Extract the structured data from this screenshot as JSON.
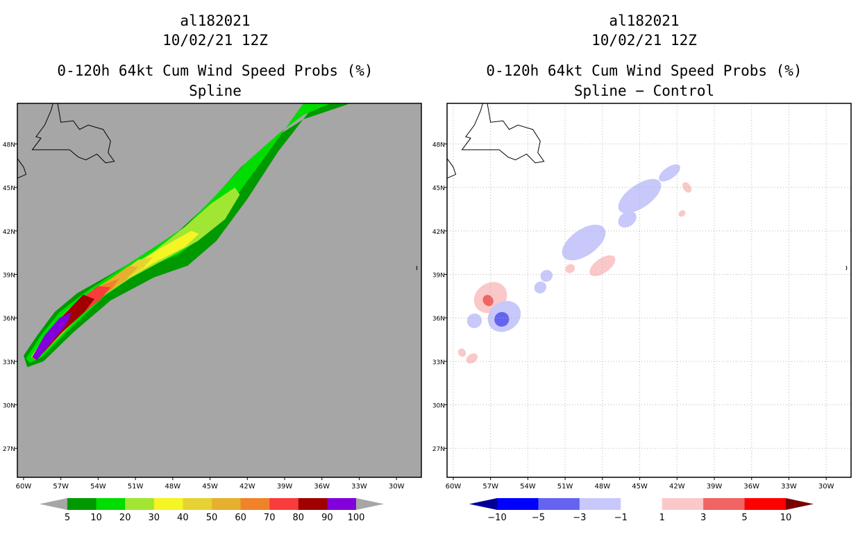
{
  "chart_data": [
    {
      "type": "heatmap",
      "panel": "left",
      "storm_id": "al182021",
      "datetime": "10/02/21 12Z",
      "title": "0-120h 64kt Cum Wind Speed Probs (%)",
      "subtitle": "Spline",
      "xlabel_ticks": [
        "60W",
        "57W",
        "54W",
        "51W",
        "48W",
        "45W",
        "42W",
        "39W",
        "36W",
        "33W",
        "30W"
      ],
      "ylabel_ticks": [
        "27N",
        "30N",
        "33N",
        "36N",
        "39N",
        "42N",
        "45N",
        "48N"
      ],
      "x_range_lon": [
        -60.5,
        -28.0
      ],
      "y_range_lat": [
        25.0,
        50.8
      ],
      "legend": {
        "labels": [
          "5",
          "10",
          "20",
          "30",
          "40",
          "50",
          "60",
          "70",
          "80",
          "90",
          "100"
        ],
        "colors": [
          "#a6a6a6",
          "#009900",
          "#00dd00",
          "#a0e632",
          "#f5f523",
          "#e6d232",
          "#e6af2d",
          "#f08228",
          "#fa3c3c",
          "#a00000",
          "#8200dc",
          "#a6a6a6"
        ]
      },
      "contours": [
        {
          "level": 5,
          "color": "#009900",
          "outline": [
            [
              -60.0,
              33.4
            ],
            [
              -58.9,
              34.8
            ],
            [
              -57.5,
              36.4
            ],
            [
              -55.7,
              37.7
            ],
            [
              -53.0,
              39.0
            ],
            [
              -50.0,
              40.5
            ],
            [
              -47.5,
              42.0
            ],
            [
              -45.0,
              44.0
            ],
            [
              -42.5,
              46.4
            ],
            [
              -39.5,
              48.6
            ],
            [
              -37.5,
              49.7
            ],
            [
              -33.7,
              50.8
            ],
            [
              -36.5,
              50.8
            ],
            [
              -39.5,
              47.5
            ],
            [
              -42.0,
              44.2
            ],
            [
              -44.5,
              41.3
            ],
            [
              -46.8,
              39.6
            ],
            [
              -49.5,
              38.8
            ],
            [
              -53.0,
              37.2
            ],
            [
              -56.0,
              35.0
            ],
            [
              -58.4,
              33.0
            ],
            [
              -59.7,
              32.6
            ]
          ]
        },
        {
          "level": 10,
          "color": "#00dd00",
          "outline": [
            [
              -59.8,
              33.2
            ],
            [
              -58.6,
              34.8
            ],
            [
              -57.1,
              36.4
            ],
            [
              -55.0,
              37.8
            ],
            [
              -52.5,
              39.2
            ],
            [
              -50.0,
              40.6
            ],
            [
              -47.0,
              42.3
            ],
            [
              -44.5,
              44.5
            ],
            [
              -42.0,
              46.8
            ],
            [
              -39.5,
              48.7
            ],
            [
              -37.5,
              50.0
            ],
            [
              -35.3,
              50.8
            ],
            [
              -37.5,
              50.8
            ],
            [
              -40.5,
              47.2
            ],
            [
              -42.8,
              44.5
            ],
            [
              -45.0,
              42.0
            ],
            [
              -47.5,
              40.4
            ],
            [
              -50.3,
              39.4
            ],
            [
              -53.5,
              37.5
            ],
            [
              -56.3,
              35.2
            ],
            [
              -58.5,
              33.3
            ],
            [
              -59.5,
              32.9
            ]
          ]
        },
        {
          "level": 20,
          "color": "#a0e632",
          "outline": [
            [
              -59.4,
              33.3
            ],
            [
              -58.1,
              35.0
            ],
            [
              -56.4,
              36.6
            ],
            [
              -54.5,
              37.9
            ],
            [
              -52.0,
              39.2
            ],
            [
              -49.5,
              40.6
            ],
            [
              -47.0,
              42.3
            ],
            [
              -44.9,
              43.9
            ],
            [
              -43.0,
              45.0
            ],
            [
              -42.6,
              44.5
            ],
            [
              -43.8,
              42.8
            ],
            [
              -46.0,
              41.3
            ],
            [
              -48.5,
              40.1
            ],
            [
              -51.5,
              38.7
            ],
            [
              -54.5,
              37.0
            ],
            [
              -57.0,
              34.8
            ],
            [
              -59.0,
              33.1
            ]
          ]
        },
        {
          "level": 30,
          "color": "#f5f523",
          "outline": [
            [
              -59.3,
              33.3
            ],
            [
              -57.8,
              35.2
            ],
            [
              -56.0,
              36.8
            ],
            [
              -53.8,
              38.1
            ],
            [
              -51.5,
              39.4
            ],
            [
              -49.0,
              40.8
            ],
            [
              -46.5,
              42.0
            ],
            [
              -45.9,
              41.8
            ],
            [
              -47.0,
              40.9
            ],
            [
              -49.5,
              39.8
            ],
            [
              -52.5,
              38.3
            ],
            [
              -55.2,
              36.6
            ],
            [
              -57.4,
              34.6
            ],
            [
              -59.0,
              33.2
            ]
          ]
        },
        {
          "level": 40,
          "color": "#e6d232",
          "outline": [
            [
              -59.3,
              33.3
            ],
            [
              -57.7,
              35.3
            ],
            [
              -55.6,
              37.0
            ],
            [
              -53.0,
              38.6
            ],
            [
              -50.8,
              40.0
            ],
            [
              -49.6,
              40.2
            ],
            [
              -50.3,
              39.5
            ],
            [
              -53.0,
              38.0
            ],
            [
              -55.5,
              36.4
            ],
            [
              -57.7,
              34.4
            ],
            [
              -59.1,
              33.1
            ]
          ]
        },
        {
          "level": 50,
          "color": "#e6af2d",
          "outline": [
            [
              -59.3,
              33.3
            ],
            [
              -57.6,
              35.3
            ],
            [
              -55.6,
              37.0
            ],
            [
              -53.5,
              38.4
            ],
            [
              -51.5,
              39.6
            ],
            [
              -50.8,
              39.5
            ],
            [
              -51.8,
              38.6
            ],
            [
              -54.0,
              37.3
            ],
            [
              -56.0,
              35.9
            ],
            [
              -57.9,
              34.1
            ],
            [
              -59.1,
              33.1
            ]
          ]
        },
        {
          "level": 60,
          "color": "#f08228",
          "outline": [
            [
              -59.3,
              33.3
            ],
            [
              -57.6,
              35.3
            ],
            [
              -55.6,
              37.1
            ],
            [
              -53.6,
              38.3
            ],
            [
              -52.3,
              38.7
            ],
            [
              -52.9,
              38.0
            ],
            [
              -54.8,
              36.7
            ],
            [
              -56.8,
              35.1
            ],
            [
              -58.3,
              33.7
            ],
            [
              -59.1,
              33.1
            ]
          ]
        },
        {
          "level": 70,
          "color": "#fa3c3c",
          "outline": [
            [
              -59.3,
              33.3
            ],
            [
              -57.6,
              35.4
            ],
            [
              -55.7,
              37.1
            ],
            [
              -54.0,
              38.2
            ],
            [
              -53.0,
              38.1
            ],
            [
              -53.8,
              37.3
            ],
            [
              -55.8,
              35.9
            ],
            [
              -57.5,
              34.5
            ],
            [
              -58.9,
              33.2
            ]
          ]
        },
        {
          "level": 80,
          "color": "#a00000",
          "outline": [
            [
              -59.3,
              33.3
            ],
            [
              -57.8,
              35.3
            ],
            [
              -56.1,
              36.8
            ],
            [
              -55.2,
              37.6
            ],
            [
              -54.3,
              37.3
            ],
            [
              -55.1,
              36.4
            ],
            [
              -56.9,
              35.0
            ],
            [
              -58.3,
              33.7
            ],
            [
              -59.0,
              33.1
            ]
          ]
        },
        {
          "level": 90,
          "color": "#8200dc",
          "outline": [
            [
              -59.3,
              33.3
            ],
            [
              -58.3,
              34.8
            ],
            [
              -57.1,
              36.0
            ],
            [
              -56.1,
              36.4
            ],
            [
              -56.6,
              35.5
            ],
            [
              -57.8,
              34.3
            ],
            [
              -58.9,
              33.1
            ]
          ]
        }
      ]
    },
    {
      "type": "heatmap",
      "panel": "right",
      "storm_id": "al182021",
      "datetime": "10/02/21 12Z",
      "title": "0-120h 64kt Cum Wind Speed Probs (%)",
      "subtitle": "Spline − Control",
      "xlabel_ticks": [
        "60W",
        "57W",
        "54W",
        "51W",
        "48W",
        "45W",
        "42W",
        "39W",
        "36W",
        "33W",
        "30W"
      ],
      "ylabel_ticks": [
        "27N",
        "30N",
        "33N",
        "36N",
        "39N",
        "42N",
        "45N",
        "48N"
      ],
      "x_range_lon": [
        -60.5,
        -28.0
      ],
      "y_range_lat": [
        25.0,
        50.8
      ],
      "legend": {
        "labels": [
          "−10",
          "−5",
          "−3",
          "−1",
          "1",
          "3",
          "5",
          "10"
        ],
        "colors": [
          "#000096",
          "#0000ff",
          "#6464f0",
          "#c8c8fa",
          "#ffffff",
          "#fac8c8",
          "#f06464",
          "#ff0000",
          "#780000"
        ]
      },
      "blobs": [
        {
          "sign": "positive",
          "color": "#fac8c8",
          "lon": -57.0,
          "lat": 37.4,
          "rx": 1.4,
          "ry": 1.0
        },
        {
          "sign": "positive",
          "color": "#f06464",
          "lon": -57.2,
          "lat": 37.2,
          "rx": 0.4,
          "ry": 0.4
        },
        {
          "sign": "negative",
          "color": "#c8c8fa",
          "lon": -55.9,
          "lat": 36.1,
          "rx": 1.4,
          "ry": 1.0
        },
        {
          "sign": "negative",
          "color": "#6464f0",
          "lon": -56.1,
          "lat": 35.9,
          "rx": 0.6,
          "ry": 0.5
        },
        {
          "sign": "negative",
          "color": "#c8c8fa",
          "lon": -58.3,
          "lat": 35.8,
          "rx": 0.6,
          "ry": 0.5
        },
        {
          "sign": "negative",
          "color": "#c8c8fa",
          "lon": -52.5,
          "lat": 38.9,
          "rx": 0.5,
          "ry": 0.4
        },
        {
          "sign": "negative",
          "color": "#c8c8fa",
          "lon": -49.5,
          "lat": 41.2,
          "rx": 2.0,
          "ry": 0.9
        },
        {
          "sign": "negative",
          "color": "#c8c8fa",
          "lon": -46.0,
          "lat": 42.8,
          "rx": 0.8,
          "ry": 0.5
        },
        {
          "sign": "negative",
          "color": "#c8c8fa",
          "lon": -45.0,
          "lat": 44.4,
          "rx": 2.0,
          "ry": 0.8
        },
        {
          "sign": "negative",
          "color": "#c8c8fa",
          "lon": -42.6,
          "lat": 46.0,
          "rx": 1.0,
          "ry": 0.4
        },
        {
          "sign": "positive",
          "color": "#fac8c8",
          "lon": -48.0,
          "lat": 39.6,
          "rx": 1.2,
          "ry": 0.5
        },
        {
          "sign": "positive",
          "color": "#fac8c8",
          "lon": -50.6,
          "lat": 39.4,
          "rx": 0.4,
          "ry": 0.3
        },
        {
          "sign": "positive",
          "color": "#fac8c8",
          "lon": -41.2,
          "lat": 45.0,
          "rx": 0.3,
          "ry": 0.4
        },
        {
          "sign": "positive",
          "color": "#fac8c8",
          "lon": -41.6,
          "lat": 43.2,
          "rx": 0.3,
          "ry": 0.2
        },
        {
          "sign": "positive",
          "color": "#fac8c8",
          "lon": -59.3,
          "lat": 33.6,
          "rx": 0.3,
          "ry": 0.3
        },
        {
          "sign": "positive",
          "color": "#fac8c8",
          "lon": -58.5,
          "lat": 33.2,
          "rx": 0.5,
          "ry": 0.3
        },
        {
          "sign": "negative",
          "color": "#c8c8fa",
          "lon": -53.0,
          "lat": 38.1,
          "rx": 0.5,
          "ry": 0.4
        }
      ]
    }
  ]
}
